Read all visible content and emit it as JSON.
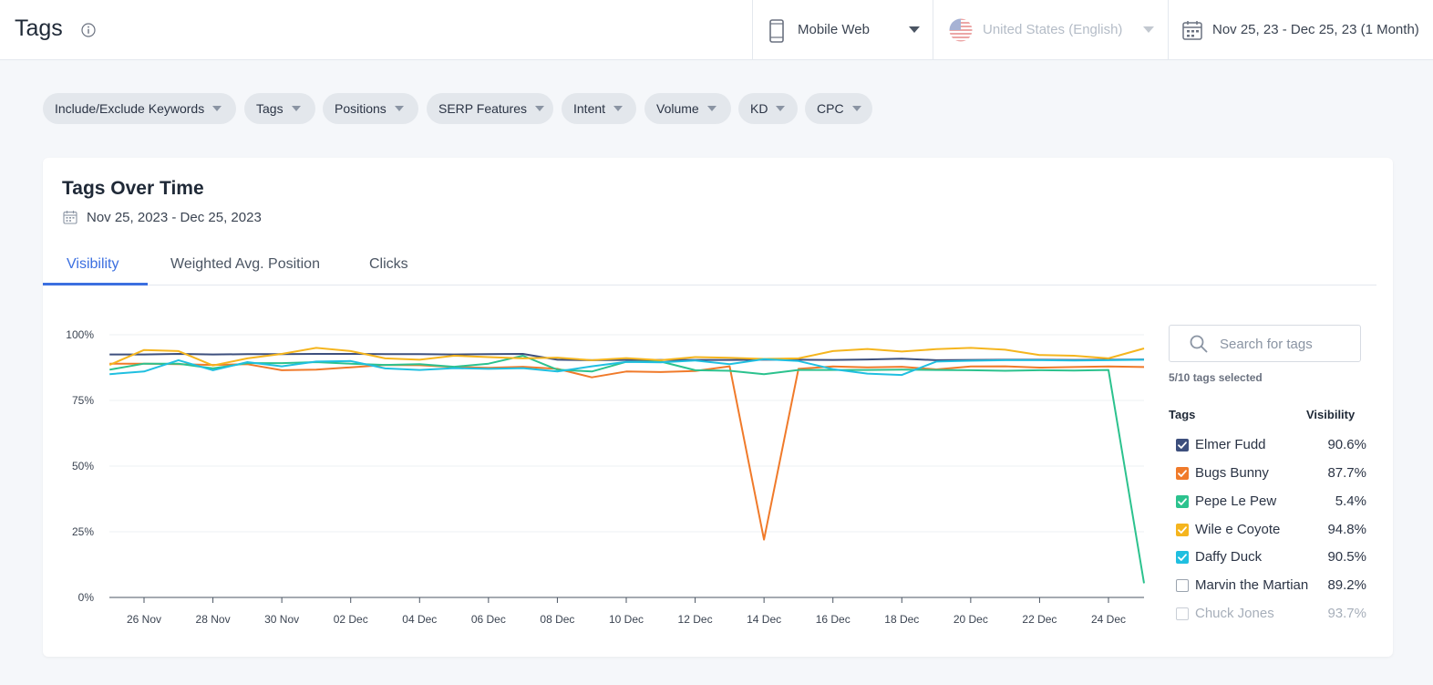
{
  "header": {
    "title": "Tags",
    "device": "Mobile Web",
    "locale": "United States (English)",
    "date_range": "Nov 25, 23 - Dec 25, 23 (1 Month)"
  },
  "filters": [
    "Include/Exclude Keywords",
    "Tags",
    "Positions",
    "SERP Features",
    "Intent",
    "Volume",
    "KD",
    "CPC"
  ],
  "card": {
    "title": "Tags Over Time",
    "date": "Nov 25, 2023 - Dec 25, 2023",
    "tabs": [
      "Visibility",
      "Weighted Avg. Position",
      "Clicks"
    ],
    "active_tab": "Visibility"
  },
  "sidebar": {
    "search_placeholder": "Search for tags",
    "selected_count": "5/10 tags selected",
    "col_tags": "Tags",
    "col_visibility": "Visibility",
    "tags": [
      {
        "name": "Elmer Fudd",
        "value": "90.6%",
        "checked": true,
        "color": "#3d4f7d"
      },
      {
        "name": "Bugs Bunny",
        "value": "87.7%",
        "checked": true,
        "color": "#f07a2a"
      },
      {
        "name": "Pepe Le Pew",
        "value": "5.4%",
        "checked": true,
        "color": "#2cc28e"
      },
      {
        "name": "Wile e Coyote",
        "value": "94.8%",
        "checked": true,
        "color": "#f5b51e"
      },
      {
        "name": "Daffy Duck",
        "value": "90.5%",
        "checked": true,
        "color": "#20bfe0"
      },
      {
        "name": "Marvin the Martian",
        "value": "89.2%",
        "checked": false,
        "color": "#9aa3ae"
      },
      {
        "name": "Chuck Jones",
        "value": "93.7%",
        "checked": false,
        "color": "#c9ced6"
      }
    ]
  },
  "chart_data": {
    "type": "line",
    "x": [
      "Nov 25",
      "Nov 26",
      "Nov 27",
      "Nov 28",
      "Nov 29",
      "Nov 30",
      "Dec 01",
      "Dec 02",
      "Dec 03",
      "Dec 04",
      "Dec 05",
      "Dec 06",
      "Dec 07",
      "Dec 08",
      "Dec 09",
      "Dec 10",
      "Dec 11",
      "Dec 12",
      "Dec 13",
      "Dec 14",
      "Dec 15",
      "Dec 16",
      "Dec 17",
      "Dec 18",
      "Dec 19",
      "Dec 20",
      "Dec 21",
      "Dec 22",
      "Dec 23",
      "Dec 24",
      "Dec 25"
    ],
    "x_tick_labels": [
      "26 Nov",
      "28 Nov",
      "30 Nov",
      "02 Dec",
      "04 Dec",
      "06 Dec",
      "08 Dec",
      "10 Dec",
      "12 Dec",
      "14 Dec",
      "16 Dec",
      "18 Dec",
      "20 Dec",
      "22 Dec",
      "24 Dec"
    ],
    "y_ticks": [
      "0%",
      "25%",
      "50%",
      "75%",
      "100%"
    ],
    "ylim": [
      0,
      100
    ],
    "title": "",
    "xlabel": "",
    "ylabel": "",
    "grid": true,
    "series": [
      {
        "name": "Elmer Fudd",
        "color": "#3d4f7d",
        "values": [
          92.5,
          92.5,
          92.7,
          92.5,
          92.6,
          92.6,
          92.7,
          92.7,
          92.6,
          92.6,
          92.5,
          92.6,
          92.7,
          90.5,
          90.3,
          90.4,
          90.4,
          90.4,
          90.4,
          90.5,
          90.5,
          90.4,
          90.6,
          90.9,
          90.3,
          90.4,
          90.5,
          90.5,
          90.4,
          90.5,
          90.6
        ]
      },
      {
        "name": "Bugs Bunny",
        "color": "#f07a2a",
        "values": [
          89.0,
          89.0,
          88.8,
          88.5,
          88.8,
          86.5,
          86.7,
          87.6,
          88.5,
          88.4,
          87.7,
          87.4,
          87.8,
          87.0,
          83.8,
          86.0,
          85.8,
          86.2,
          88.0,
          22.0,
          87.0,
          87.9,
          87.6,
          87.8,
          86.8,
          87.9,
          88.0,
          87.5,
          87.7,
          87.9,
          87.7
        ]
      },
      {
        "name": "Pepe Le Pew",
        "color": "#2cc28e",
        "values": [
          86.7,
          89.0,
          89.0,
          87.2,
          89.2,
          89.2,
          89.6,
          89.0,
          88.5,
          88.8,
          87.8,
          89.0,
          92.0,
          86.7,
          86.0,
          89.7,
          89.8,
          86.5,
          86.3,
          85.0,
          86.6,
          86.6,
          86.6,
          86.7,
          86.6,
          86.5,
          86.3,
          86.5,
          86.4,
          86.6,
          5.4
        ]
      },
      {
        "name": "Wile e Coyote",
        "color": "#f5b51e",
        "values": [
          88.5,
          94.2,
          93.8,
          88.3,
          91.0,
          92.7,
          95.0,
          93.8,
          91.0,
          90.5,
          92.0,
          91.5,
          91.0,
          91.3,
          90.3,
          91.1,
          90.3,
          91.5,
          91.2,
          90.8,
          91.0,
          93.8,
          94.6,
          93.6,
          94.5,
          95.0,
          94.3,
          92.3,
          92.0,
          91.0,
          94.8
        ]
      },
      {
        "name": "Daffy Duck",
        "color": "#20bfe0",
        "values": [
          85.0,
          86.0,
          90.3,
          86.5,
          89.6,
          88.0,
          89.8,
          90.0,
          87.2,
          86.6,
          87.3,
          87.0,
          87.3,
          86.0,
          88.0,
          89.7,
          89.5,
          90.2,
          88.8,
          90.7,
          90.0,
          86.9,
          85.2,
          84.7,
          89.8,
          90.1,
          90.3,
          90.3,
          90.2,
          90.3,
          90.5
        ]
      }
    ]
  }
}
